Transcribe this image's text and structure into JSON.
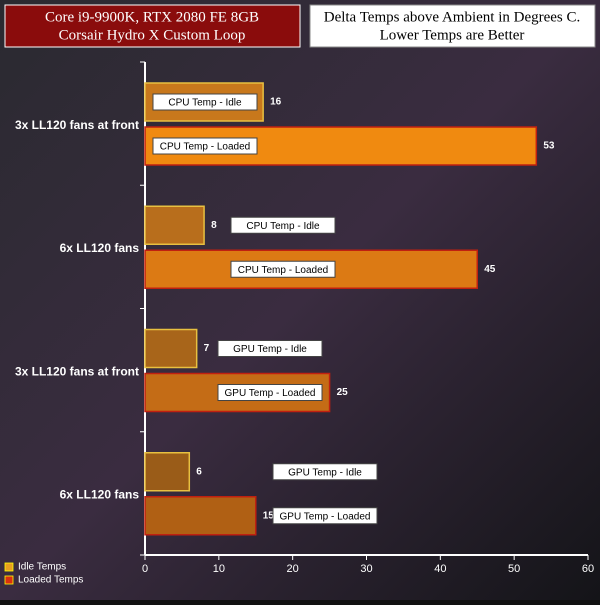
{
  "chart_data": {
    "type": "hbar",
    "title": [
      "Core i9-9900K, RTX 2080 FE 8GB",
      "Corsair Hydro X Custom Loop"
    ],
    "subtitle": [
      "Delta Temps above Ambient in Degrees C.",
      "Lower Temps are Better"
    ],
    "categories": [
      "3x LL120 fans at front",
      "6x LL120 fans",
      "3x LL120 fans at front",
      "6x LL120 fans"
    ],
    "series": [
      {
        "name": "Idle Temps",
        "color": "#e8a020",
        "values": [
          16,
          8,
          7,
          6
        ],
        "bar_colors": [
          "#c8781c",
          "#b86e1c",
          "#a8651a",
          "#9a5c18"
        ],
        "annotations": [
          "CPU Temp - Idle",
          "CPU Temp - Idle",
          "GPU Temp - Idle",
          "GPU Temp - Idle"
        ]
      },
      {
        "name": "Loaded Temps",
        "color": "#d83010",
        "values": [
          53,
          45,
          25,
          15
        ],
        "bar_colors": [
          "#f08a10",
          "#dc7a14",
          "#c46c16",
          "#b06014"
        ],
        "annotations": [
          "CPU Temp -  Loaded",
          "CPU Temp -  Loaded",
          "GPU Temp - Loaded",
          "GPU Temp - Loaded"
        ]
      }
    ],
    "xlim": [
      0,
      60
    ],
    "xticks": [
      0,
      10,
      20,
      30,
      40,
      50,
      60
    ]
  }
}
